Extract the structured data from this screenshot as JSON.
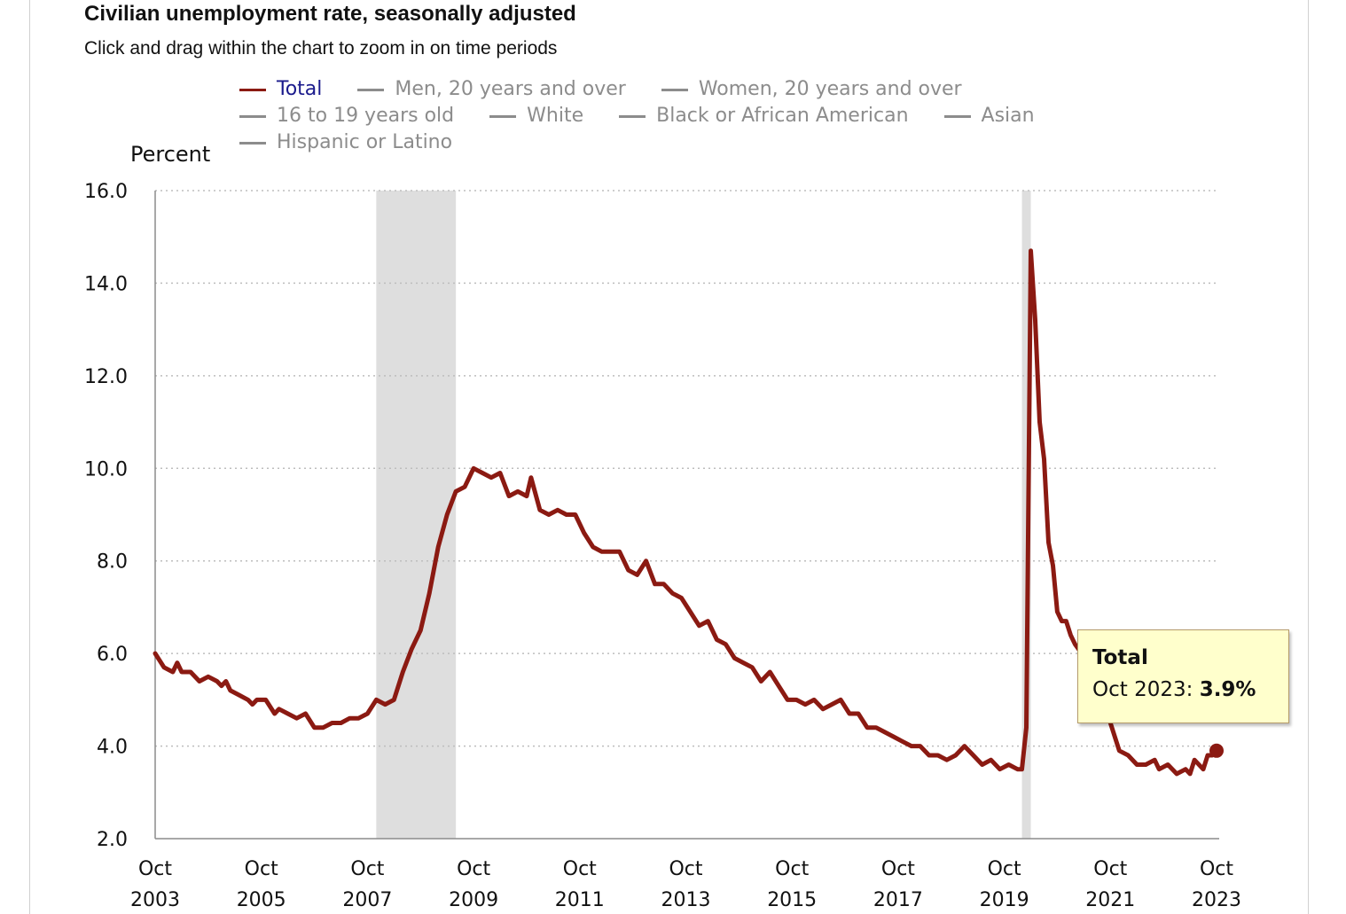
{
  "header": {
    "title": "Civilian unemployment rate, seasonally adjusted",
    "subtitle": "Click and drag within the chart to zoom in on time periods"
  },
  "legend": {
    "rows": [
      [
        {
          "label": "Total",
          "active": true
        },
        {
          "label": "Men, 20 years and over",
          "active": false
        },
        {
          "label": "Women, 20 years and over",
          "active": false
        }
      ],
      [
        {
          "label": "16 to 19 years old",
          "active": false
        },
        {
          "label": "White",
          "active": false
        },
        {
          "label": "Black or African American",
          "active": false
        },
        {
          "label": "Asian",
          "active": false
        }
      ],
      [
        {
          "label": "Hispanic or Latino",
          "active": false
        }
      ]
    ]
  },
  "tooltip": {
    "series": "Total",
    "period": "Oct 2023",
    "separator": ": ",
    "value": "3.9%"
  },
  "colors": {
    "series": "#8b1a12",
    "recession": "#dedede",
    "grid": "#bdbdbd",
    "axis": "#8c8c8c",
    "inactive_legend": "#8c8c8c",
    "active_legend_text": "#1a1a8c",
    "tooltip_bg": "#ffffcc"
  },
  "chart_data": {
    "type": "line",
    "title": "Civilian unemployment rate, seasonally adjusted",
    "ylabel": "Percent",
    "ylim": [
      2,
      16
    ],
    "y_ticks": [
      "2.0",
      "4.0",
      "6.0",
      "8.0",
      "10.0",
      "12.0",
      "14.0",
      "16.0"
    ],
    "x_range": [
      "2003-10",
      "2023-10"
    ],
    "x_ticks": [
      {
        "month": "Oct",
        "year": "2003"
      },
      {
        "month": "Oct",
        "year": "2005"
      },
      {
        "month": "Oct",
        "year": "2007"
      },
      {
        "month": "Oct",
        "year": "2009"
      },
      {
        "month": "Oct",
        "year": "2011"
      },
      {
        "month": "Oct",
        "year": "2013"
      },
      {
        "month": "Oct",
        "year": "2015"
      },
      {
        "month": "Oct",
        "year": "2017"
      },
      {
        "month": "Oct",
        "year": "2019"
      },
      {
        "month": "Oct",
        "year": "2021"
      },
      {
        "month": "Oct",
        "year": "2023"
      }
    ],
    "grid": true,
    "legend_position": "top",
    "recessions": [
      {
        "start": "2007-12",
        "end": "2009-06"
      },
      {
        "start": "2020-02",
        "end": "2020-04"
      }
    ],
    "series": [
      {
        "name": "Total",
        "points": [
          [
            "2003-10",
            6.0
          ],
          [
            "2003-12",
            5.7
          ],
          [
            "2004-02",
            5.6
          ],
          [
            "2004-03",
            5.8
          ],
          [
            "2004-04",
            5.6
          ],
          [
            "2004-06",
            5.6
          ],
          [
            "2004-08",
            5.4
          ],
          [
            "2004-10",
            5.5
          ],
          [
            "2004-12",
            5.4
          ],
          [
            "2005-01",
            5.3
          ],
          [
            "2005-02",
            5.4
          ],
          [
            "2005-03",
            5.2
          ],
          [
            "2005-05",
            5.1
          ],
          [
            "2005-07",
            5.0
          ],
          [
            "2005-08",
            4.9
          ],
          [
            "2005-09",
            5.0
          ],
          [
            "2005-11",
            5.0
          ],
          [
            "2006-01",
            4.7
          ],
          [
            "2006-02",
            4.8
          ],
          [
            "2006-04",
            4.7
          ],
          [
            "2006-06",
            4.6
          ],
          [
            "2006-08",
            4.7
          ],
          [
            "2006-10",
            4.4
          ],
          [
            "2006-12",
            4.4
          ],
          [
            "2007-02",
            4.5
          ],
          [
            "2007-04",
            4.5
          ],
          [
            "2007-06",
            4.6
          ],
          [
            "2007-08",
            4.6
          ],
          [
            "2007-10",
            4.7
          ],
          [
            "2007-12",
            5.0
          ],
          [
            "2008-02",
            4.9
          ],
          [
            "2008-04",
            5.0
          ],
          [
            "2008-06",
            5.6
          ],
          [
            "2008-08",
            6.1
          ],
          [
            "2008-10",
            6.5
          ],
          [
            "2008-12",
            7.3
          ],
          [
            "2009-02",
            8.3
          ],
          [
            "2009-04",
            9.0
          ],
          [
            "2009-06",
            9.5
          ],
          [
            "2009-08",
            9.6
          ],
          [
            "2009-10",
            10.0
          ],
          [
            "2009-12",
            9.9
          ],
          [
            "2010-02",
            9.8
          ],
          [
            "2010-04",
            9.9
          ],
          [
            "2010-06",
            9.4
          ],
          [
            "2010-08",
            9.5
          ],
          [
            "2010-10",
            9.4
          ],
          [
            "2010-11",
            9.8
          ],
          [
            "2011-01",
            9.1
          ],
          [
            "2011-03",
            9.0
          ],
          [
            "2011-05",
            9.1
          ],
          [
            "2011-07",
            9.0
          ],
          [
            "2011-09",
            9.0
          ],
          [
            "2011-11",
            8.6
          ],
          [
            "2012-01",
            8.3
          ],
          [
            "2012-03",
            8.2
          ],
          [
            "2012-05",
            8.2
          ],
          [
            "2012-07",
            8.2
          ],
          [
            "2012-09",
            7.8
          ],
          [
            "2012-11",
            7.7
          ],
          [
            "2013-01",
            8.0
          ],
          [
            "2013-03",
            7.5
          ],
          [
            "2013-05",
            7.5
          ],
          [
            "2013-07",
            7.3
          ],
          [
            "2013-09",
            7.2
          ],
          [
            "2013-11",
            6.9
          ],
          [
            "2014-01",
            6.6
          ],
          [
            "2014-03",
            6.7
          ],
          [
            "2014-05",
            6.3
          ],
          [
            "2014-07",
            6.2
          ],
          [
            "2014-09",
            5.9
          ],
          [
            "2014-11",
            5.8
          ],
          [
            "2015-01",
            5.7
          ],
          [
            "2015-03",
            5.4
          ],
          [
            "2015-05",
            5.6
          ],
          [
            "2015-07",
            5.3
          ],
          [
            "2015-09",
            5.0
          ],
          [
            "2015-11",
            5.0
          ],
          [
            "2016-01",
            4.9
          ],
          [
            "2016-03",
            5.0
          ],
          [
            "2016-05",
            4.8
          ],
          [
            "2016-07",
            4.9
          ],
          [
            "2016-09",
            5.0
          ],
          [
            "2016-11",
            4.7
          ],
          [
            "2017-01",
            4.7
          ],
          [
            "2017-03",
            4.4
          ],
          [
            "2017-05",
            4.4
          ],
          [
            "2017-07",
            4.3
          ],
          [
            "2017-09",
            4.2
          ],
          [
            "2017-11",
            4.1
          ],
          [
            "2018-01",
            4.0
          ],
          [
            "2018-03",
            4.0
          ],
          [
            "2018-05",
            3.8
          ],
          [
            "2018-07",
            3.8
          ],
          [
            "2018-09",
            3.7
          ],
          [
            "2018-11",
            3.8
          ],
          [
            "2019-01",
            4.0
          ],
          [
            "2019-03",
            3.8
          ],
          [
            "2019-05",
            3.6
          ],
          [
            "2019-07",
            3.7
          ],
          [
            "2019-09",
            3.5
          ],
          [
            "2019-11",
            3.6
          ],
          [
            "2020-01",
            3.5
          ],
          [
            "2020-02",
            3.5
          ],
          [
            "2020-03",
            4.4
          ],
          [
            "2020-04",
            14.7
          ],
          [
            "2020-05",
            13.2
          ],
          [
            "2020-06",
            11.0
          ],
          [
            "2020-07",
            10.2
          ],
          [
            "2020-08",
            8.4
          ],
          [
            "2020-09",
            7.9
          ],
          [
            "2020-10",
            6.9
          ],
          [
            "2020-11",
            6.7
          ],
          [
            "2020-12",
            6.7
          ],
          [
            "2021-01",
            6.4
          ],
          [
            "2021-02",
            6.2
          ],
          [
            "2021-05",
            5.8
          ],
          [
            "2021-08",
            5.2
          ],
          [
            "2021-10",
            4.5
          ],
          [
            "2021-12",
            3.9
          ],
          [
            "2022-02",
            3.8
          ],
          [
            "2022-04",
            3.6
          ],
          [
            "2022-06",
            3.6
          ],
          [
            "2022-08",
            3.7
          ],
          [
            "2022-09",
            3.5
          ],
          [
            "2022-11",
            3.6
          ],
          [
            "2023-01",
            3.4
          ],
          [
            "2023-03",
            3.5
          ],
          [
            "2023-04",
            3.4
          ],
          [
            "2023-05",
            3.7
          ],
          [
            "2023-07",
            3.5
          ],
          [
            "2023-08",
            3.8
          ],
          [
            "2023-09",
            3.8
          ],
          [
            "2023-10",
            3.9
          ]
        ]
      }
    ]
  }
}
